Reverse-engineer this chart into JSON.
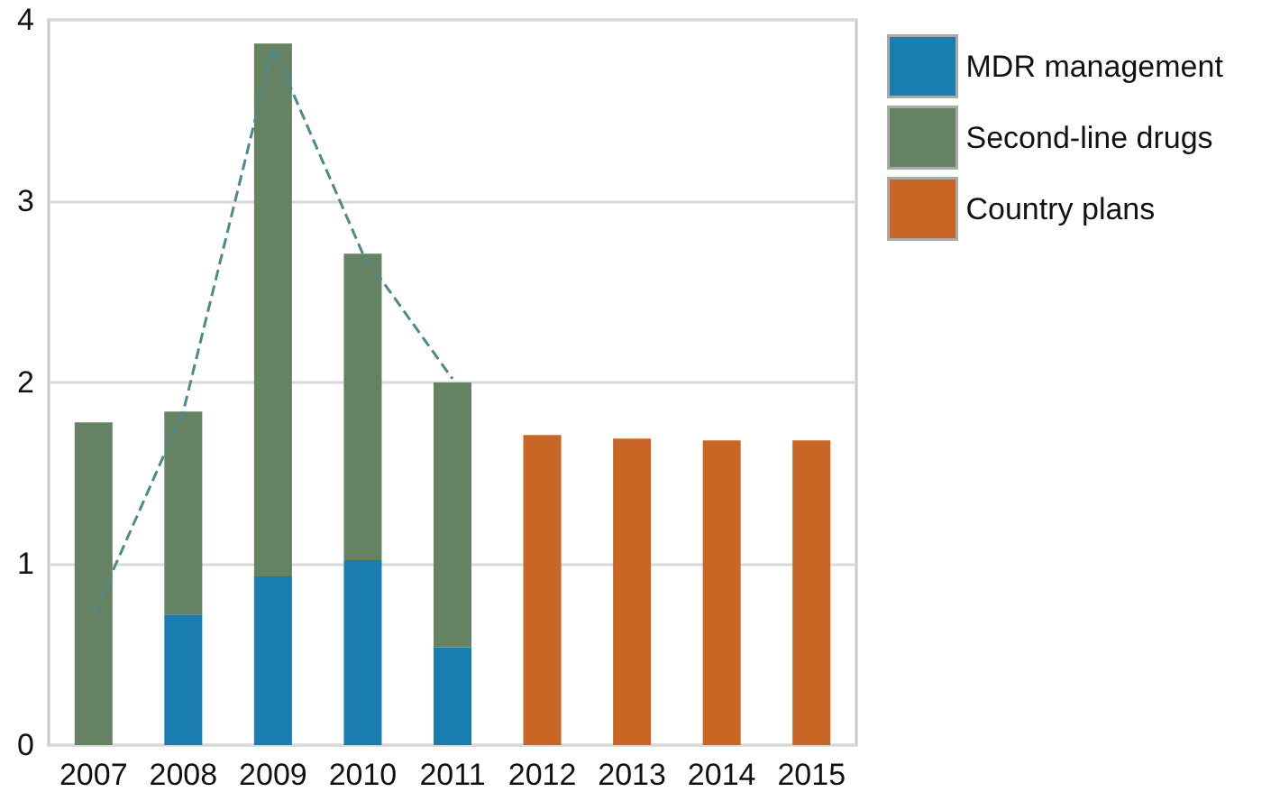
{
  "chart_data": {
    "type": "bar",
    "stacked": true,
    "categories": [
      "2007",
      "2008",
      "2009",
      "2010",
      "2011",
      "2012",
      "2013",
      "2014",
      "2015"
    ],
    "series": [
      {
        "name": "MDR management",
        "color": "#1a7db0",
        "values": [
          null,
          0.72,
          0.93,
          1.02,
          0.54,
          null,
          null,
          null,
          null
        ]
      },
      {
        "name": "Second-line drugs",
        "color": "#658263",
        "values": [
          1.78,
          1.12,
          2.94,
          1.69,
          1.46,
          null,
          null,
          null,
          null
        ]
      },
      {
        "name": "Country plans",
        "color": "#c96525",
        "values": [
          null,
          null,
          null,
          null,
          null,
          1.71,
          1.69,
          1.68,
          1.68
        ]
      },
      {
        "type": "line",
        "color": "#4f8a8b",
        "line_style": "dashed",
        "marker": "none",
        "values": [
          0.72,
          1.84,
          3.85,
          2.71,
          2.02,
          null,
          null,
          null,
          null
        ]
      }
    ],
    "ylim": [
      0,
      4
    ],
    "yticks": [
      0,
      1,
      2,
      3,
      4
    ],
    "grid": "y",
    "legend": "top right"
  }
}
